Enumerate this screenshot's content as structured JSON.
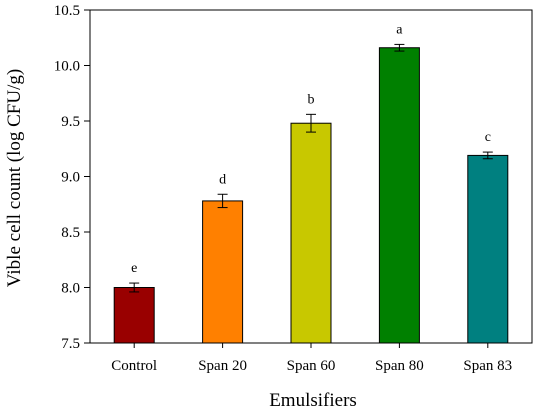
{
  "chart_data": {
    "type": "bar",
    "xlabel": "Emulsifiers",
    "ylabel": "Vible cell count (log CFU/g)",
    "ylim": [
      7.5,
      10.5
    ],
    "yticks": [
      "7.5",
      "8.0",
      "8.5",
      "9.0",
      "9.5",
      "10.0",
      "10.5"
    ],
    "categories": [
      "Control",
      "Span 20",
      "Span 60",
      "Span 80",
      "Span 83"
    ],
    "values": [
      8.0,
      8.78,
      9.48,
      10.16,
      9.19
    ],
    "errors": [
      0.04,
      0.06,
      0.08,
      0.03,
      0.03
    ],
    "letters": [
      "e",
      "d",
      "b",
      "a",
      "c"
    ],
    "colors": [
      "#990000",
      "#ff8000",
      "#c8c800",
      "#008000",
      "#008080"
    ],
    "grid": false
  }
}
